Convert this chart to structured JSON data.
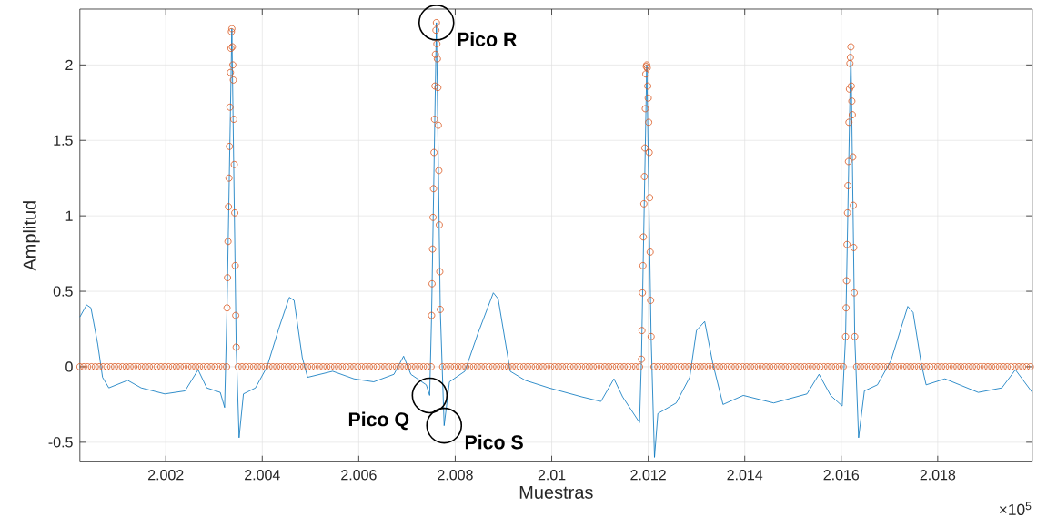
{
  "chart_data": {
    "type": "line",
    "xlabel": "Muestras",
    "ylabel": "Amplitud",
    "xlim": [
      2.00022,
      2.01996
    ],
    "ylim": [
      -0.63,
      2.37
    ],
    "xticks": [
      2.002,
      2.004,
      2.006,
      2.008,
      2.01,
      2.012,
      2.014,
      2.016,
      2.018
    ],
    "yticks": [
      -0.5,
      0,
      0.5,
      1,
      1.5,
      2
    ],
    "grid": true,
    "annotations": [
      {
        "text": "Pico R",
        "x": 2.00761,
        "y": 2.28
      },
      {
        "text": "Pico Q",
        "x": 2.00747,
        "y": -0.19
      },
      {
        "text": "Pico S",
        "x": 2.00777,
        "y": -0.39
      },
      "×10$^{5}$"
    ],
    "series": [
      {
        "color": "#0072bd",
        "marker": "none",
        "x": [
          2.00022,
          2.00036,
          2.00045,
          2.00059,
          2.00069,
          2.00082,
          2.00121,
          2.00149,
          2.00198,
          2.0024,
          2.00267,
          2.00285,
          2.00313,
          2.00322,
          2.00327,
          2.00337,
          2.00346,
          2.00352,
          2.00361,
          2.00386,
          2.0041,
          2.00435,
          2.00456,
          2.00466,
          2.00483,
          2.00494,
          2.00546,
          2.0059,
          2.00631,
          2.00673,
          2.00693,
          2.00708,
          2.0074,
          2.00747,
          2.00751,
          2.00761,
          2.00769,
          2.00777,
          2.00788,
          2.0082,
          2.00847,
          2.00879,
          2.00889,
          2.00914,
          2.00945,
          2.00994,
          2.01063,
          2.01102,
          2.01129,
          2.01147,
          2.01182,
          2.01186,
          2.01197,
          2.01206,
          2.01213,
          2.0122,
          2.01258,
          2.01286,
          2.013,
          2.01317,
          2.01334,
          2.01355,
          2.01397,
          2.0146,
          2.01529,
          2.01554,
          2.01578,
          2.01602,
          2.01609,
          2.0162,
          2.01628,
          2.01636,
          2.01648,
          2.01675,
          2.01703,
          2.01738,
          2.01749,
          2.01766,
          2.01776,
          2.01815,
          2.01884,
          2.01933,
          2.01961,
          2.01996
        ],
        "values": [
          0.33,
          0.41,
          0.39,
          0.15,
          -0.07,
          -0.14,
          -0.09,
          -0.14,
          -0.18,
          -0.16,
          -0.02,
          -0.14,
          -0.17,
          -0.27,
          0.39,
          2.24,
          0.13,
          -0.47,
          -0.18,
          -0.14,
          0,
          0.26,
          0.46,
          0.44,
          0.06,
          -0.07,
          -0.03,
          -0.08,
          -0.1,
          -0.05,
          0.07,
          -0.05,
          -0.12,
          -0.19,
          0.34,
          2.28,
          0.38,
          -0.39,
          -0.1,
          -0.03,
          0.22,
          0.49,
          0.45,
          -0.03,
          -0.09,
          -0.14,
          -0.2,
          -0.23,
          -0.08,
          -0.2,
          -0.37,
          0.05,
          2.0,
          0.2,
          -0.6,
          -0.31,
          -0.24,
          -0.07,
          0.24,
          0.3,
          0.02,
          -0.25,
          -0.19,
          -0.24,
          -0.18,
          -0.05,
          -0.19,
          -0.26,
          0.2,
          2.12,
          0.2,
          -0.47,
          -0.16,
          -0.12,
          0.04,
          0.4,
          0.36,
          0.02,
          -0.12,
          -0.08,
          -0.17,
          -0.14,
          -0.02,
          -0.17
        ]
      },
      {
        "type": "scatter",
        "color": "#d95319",
        "marker": "circle",
        "x": [
          2.00022,
          2.0003,
          2.00038,
          2.00046,
          2.00054,
          2.00062,
          2.0007,
          2.00078,
          2.00086,
          2.00094,
          2.00102,
          2.0011,
          2.00118,
          2.00126,
          2.00134,
          2.00142,
          2.0015,
          2.00158,
          2.00166,
          2.00174,
          2.00182,
          2.0019,
          2.00198,
          2.00206,
          2.00214,
          2.00222,
          2.0023,
          2.00238,
          2.00246,
          2.00254,
          2.00262,
          2.0027,
          2.00278,
          2.00286,
          2.00294,
          2.00302,
          2.0031,
          2.00318,
          2.00326,
          2.00327,
          2.00328,
          2.00329,
          2.0033,
          2.00331,
          2.00332,
          2.00333,
          2.00334,
          2.00335,
          2.00336,
          2.00337,
          2.00338,
          2.00339,
          2.0034,
          2.00341,
          2.00342,
          2.00343,
          2.00344,
          2.00345,
          2.00346,
          2.0035,
          2.00358,
          2.00366,
          2.00374,
          2.00382,
          2.0039,
          2.00398,
          2.00406,
          2.00414,
          2.00422,
          2.0043,
          2.00438,
          2.00446,
          2.00454,
          2.00462,
          2.0047,
          2.00478,
          2.00486,
          2.00494,
          2.00502,
          2.0051,
          2.00518,
          2.00526,
          2.00534,
          2.00542,
          2.0055,
          2.00558,
          2.00566,
          2.00574,
          2.00582,
          2.0059,
          2.00598,
          2.00606,
          2.00614,
          2.00622,
          2.0063,
          2.00638,
          2.00646,
          2.00654,
          2.00662,
          2.0067,
          2.00678,
          2.00686,
          2.00694,
          2.00702,
          2.0071,
          2.00718,
          2.00726,
          2.00734,
          2.00742,
          2.0075,
          2.00751,
          2.00752,
          2.00753,
          2.00754,
          2.00755,
          2.00756,
          2.00757,
          2.00758,
          2.00759,
          2.0076,
          2.00761,
          2.00762,
          2.00763,
          2.00764,
          2.00765,
          2.00766,
          2.00767,
          2.00768,
          2.00769,
          2.00774,
          2.00782,
          2.0079,
          2.00798,
          2.00806,
          2.00814,
          2.00822,
          2.0083,
          2.00838,
          2.00846,
          2.00854,
          2.00862,
          2.0087,
          2.00878,
          2.00886,
          2.00894,
          2.00902,
          2.0091,
          2.00918,
          2.00926,
          2.00934,
          2.00942,
          2.0095,
          2.00958,
          2.00966,
          2.00974,
          2.00982,
          2.0099,
          2.00998,
          2.01006,
          2.01014,
          2.01022,
          2.0103,
          2.01038,
          2.01046,
          2.01054,
          2.01062,
          2.0107,
          2.01078,
          2.01086,
          2.01094,
          2.01102,
          2.0111,
          2.01118,
          2.01126,
          2.01134,
          2.01142,
          2.0115,
          2.01158,
          2.01166,
          2.01174,
          2.01182,
          2.01186,
          2.01187,
          2.01188,
          2.01189,
          2.0119,
          2.01191,
          2.01192,
          2.01193,
          2.01194,
          2.01195,
          2.01196,
          2.01197,
          2.01198,
          2.01199,
          2.012,
          2.01201,
          2.01202,
          2.01203,
          2.01204,
          2.01205,
          2.01206,
          2.01212,
          2.0122,
          2.01228,
          2.01236,
          2.01244,
          2.01252,
          2.0126,
          2.01268,
          2.01276,
          2.01284,
          2.01292,
          2.013,
          2.01308,
          2.01316,
          2.01324,
          2.01332,
          2.0134,
          2.01348,
          2.01356,
          2.01364,
          2.01372,
          2.0138,
          2.01388,
          2.01396,
          2.01404,
          2.01412,
          2.0142,
          2.01428,
          2.01436,
          2.01444,
          2.01452,
          2.0146,
          2.01468,
          2.01476,
          2.01484,
          2.01492,
          2.015,
          2.01508,
          2.01516,
          2.01524,
          2.01532,
          2.0154,
          2.01548,
          2.01556,
          2.01564,
          2.01572,
          2.0158,
          2.01588,
          2.01596,
          2.01604,
          2.01609,
          2.0161,
          2.01611,
          2.01612,
          2.01613,
          2.01614,
          2.01615,
          2.01616,
          2.01617,
          2.01618,
          2.01619,
          2.0162,
          2.01621,
          2.01622,
          2.01623,
          2.01624,
          2.01625,
          2.01626,
          2.01627,
          2.01628,
          2.01632,
          2.0164,
          2.01648,
          2.01656,
          2.01664,
          2.01672,
          2.0168,
          2.01688,
          2.01696,
          2.01704,
          2.01712,
          2.0172,
          2.01728,
          2.01736,
          2.01744,
          2.01752,
          2.0176,
          2.01768,
          2.01776,
          2.01784,
          2.01792,
          2.018,
          2.01808,
          2.01816,
          2.01824,
          2.01832,
          2.0184,
          2.01848,
          2.01856,
          2.01864,
          2.01872,
          2.0188,
          2.01888,
          2.01896,
          2.01904,
          2.01912,
          2.0192,
          2.01928,
          2.01936,
          2.01944,
          2.01952,
          2.0196,
          2.01968,
          2.01976,
          2.01984,
          2.01992
        ],
        "values": [
          0,
          0,
          0,
          0,
          0,
          0,
          0,
          0,
          0,
          0,
          0,
          0,
          0,
          0,
          0,
          0,
          0,
          0,
          0,
          0,
          0,
          0,
          0,
          0,
          0,
          0,
          0,
          0,
          0,
          0,
          0,
          0,
          0,
          0,
          0,
          0,
          0,
          0,
          0,
          0.39,
          0.59,
          0.83,
          1.06,
          1.25,
          1.46,
          1.72,
          1.95,
          2.11,
          2.22,
          2.24,
          2.12,
          2.0,
          1.9,
          1.64,
          1.34,
          1.02,
          0.67,
          0.34,
          0.13,
          0,
          0,
          0,
          0,
          0,
          0,
          0,
          0,
          0,
          0,
          0,
          0,
          0,
          0,
          0,
          0,
          0,
          0,
          0,
          0,
          0,
          0,
          0,
          0,
          0,
          0,
          0,
          0,
          0,
          0,
          0,
          0,
          0,
          0,
          0,
          0,
          0,
          0,
          0,
          0,
          0,
          0,
          0,
          0,
          0,
          0,
          0,
          0,
          0,
          0,
          0,
          0.34,
          0.55,
          0.78,
          0.99,
          1.18,
          1.42,
          1.64,
          1.86,
          2.07,
          2.23,
          2.28,
          2.14,
          2.04,
          1.85,
          1.6,
          1.3,
          0.94,
          0.63,
          0.38,
          0,
          0,
          0,
          0,
          0,
          0,
          0,
          0,
          0,
          0,
          0,
          0,
          0,
          0,
          0,
          0,
          0,
          0,
          0,
          0,
          0,
          0,
          0,
          0,
          0,
          0,
          0,
          0,
          0,
          0,
          0,
          0,
          0,
          0,
          0,
          0,
          0,
          0,
          0,
          0,
          0,
          0,
          0,
          0,
          0,
          0,
          0,
          0,
          0,
          0,
          0,
          0,
          0.05,
          0.24,
          0.49,
          0.67,
          0.86,
          1.08,
          1.26,
          1.45,
          1.71,
          1.94,
          1.99,
          2.0,
          1.98,
          1.86,
          1.78,
          1.62,
          1.42,
          1.12,
          0.76,
          0.44,
          0.2,
          0,
          0,
          0,
          0,
          0,
          0,
          0,
          0,
          0,
          0,
          0,
          0,
          0,
          0,
          0,
          0,
          0,
          0,
          0,
          0,
          0,
          0,
          0,
          0,
          0,
          0,
          0,
          0,
          0,
          0,
          0,
          0,
          0,
          0,
          0,
          0,
          0,
          0,
          0,
          0,
          0,
          0,
          0,
          0,
          0,
          0,
          0,
          0,
          0,
          0,
          0.2,
          0.39,
          0.57,
          0.81,
          1.02,
          1.2,
          1.36,
          1.62,
          1.84,
          2.01,
          2.05,
          2.12,
          1.86,
          1.76,
          1.67,
          1.39,
          1.07,
          0.79,
          0.49,
          0.2,
          0,
          0,
          0,
          0,
          0,
          0,
          0,
          0,
          0,
          0,
          0,
          0,
          0,
          0,
          0,
          0,
          0,
          0,
          0,
          0,
          0,
          0,
          0,
          0,
          0,
          0,
          0,
          0,
          0,
          0,
          0,
          0,
          0,
          0,
          0,
          0,
          0,
          0,
          0,
          0,
          0,
          0,
          0,
          0,
          0,
          0
        ]
      }
    ]
  }
}
